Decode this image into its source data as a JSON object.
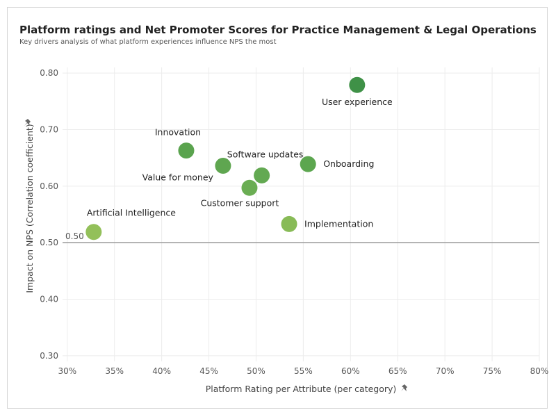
{
  "header": {
    "title": "Platform ratings and Net Promoter Scores for Practice Management & Legal Operations",
    "subtitle": "Key drivers analysis of what platform experiences influence NPS the most"
  },
  "chart_data": {
    "type": "scatter",
    "xlabel": "Platform Rating per Attribute (per category)",
    "ylabel": "Impact on NPS (Correlation coefficient)",
    "xlim": [
      0.295,
      0.8
    ],
    "ylim": [
      0.29,
      0.81
    ],
    "x_ticks": [
      0.3,
      0.35,
      0.4,
      0.45,
      0.5,
      0.55,
      0.6,
      0.65,
      0.7,
      0.75,
      0.8
    ],
    "x_tick_labels": [
      "30%",
      "35%",
      "40%",
      "45%",
      "50%",
      "55%",
      "60%",
      "65%",
      "70%",
      "75%",
      "80%"
    ],
    "y_ticks": [
      0.3,
      0.4,
      0.5,
      0.6,
      0.7,
      0.8
    ],
    "y_tick_labels": [
      "0.30",
      "0.40",
      "0.50",
      "0.60",
      "0.70",
      "0.80"
    ],
    "reference_line": {
      "y": 0.5,
      "label": "0.50"
    },
    "grid": true,
    "points": [
      {
        "label": "User experience",
        "x": 0.607,
        "y": 0.779,
        "color": "#3f9147",
        "label_pos": "below-right"
      },
      {
        "label": "Innovation",
        "x": 0.426,
        "y": 0.663,
        "color": "#5aa34e",
        "label_pos": "above-left"
      },
      {
        "label": "Value for money",
        "x": 0.465,
        "y": 0.636,
        "color": "#5fa650",
        "label_pos": "below-left"
      },
      {
        "label": "Software updates",
        "x": 0.506,
        "y": 0.619,
        "color": "#63a952",
        "label_pos": "above"
      },
      {
        "label": "Customer support",
        "x": 0.493,
        "y": 0.597,
        "color": "#6aad53",
        "label_pos": "below"
      },
      {
        "label": "Onboarding",
        "x": 0.555,
        "y": 0.639,
        "color": "#5ca64f",
        "label_pos": "right"
      },
      {
        "label": "Implementation",
        "x": 0.535,
        "y": 0.533,
        "color": "#88bb57",
        "label_pos": "right"
      },
      {
        "label": "Artificial Intelligence",
        "x": 0.328,
        "y": 0.519,
        "color": "#93c05a",
        "label_pos": "above-right"
      }
    ]
  }
}
